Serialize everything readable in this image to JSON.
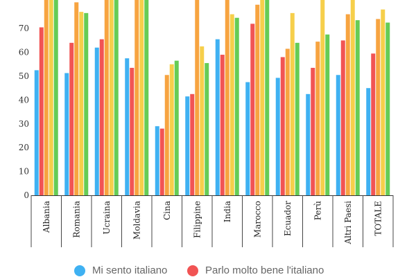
{
  "chart_data": {
    "type": "bar",
    "categories": [
      "Albania",
      "Romania",
      "Ucraina",
      "Moldavia",
      "Cina",
      "Filippine",
      "India",
      "Marocco",
      "Ecuador",
      "Perù",
      "Altri Paesi",
      "TOTALE"
    ],
    "ylim": [
      0,
      80
    ],
    "yticks": [
      0,
      10,
      20,
      30,
      40,
      50,
      60,
      70
    ],
    "grid": false,
    "legend_position": "bottom",
    "series": [
      {
        "name": "Mi sento italiano",
        "color": "#3fb1f2",
        "values": [
          52.5,
          51.3,
          62,
          57.5,
          29,
          41.5,
          65.5,
          47.5,
          49.3,
          42.5,
          50.5,
          45
        ]
      },
      {
        "name": "Parlo molto bene l'italiano",
        "color": "#f15454",
        "values": [
          70.5,
          64,
          65.5,
          53.5,
          28,
          42.5,
          59,
          72,
          58,
          53.5,
          65,
          59.5
        ]
      },
      {
        "values": [
          82,
          81,
          82,
          82,
          50.5,
          82,
          82,
          80,
          61.5,
          64.5,
          76,
          74
        ]
      },
      {
        "values": [
          83,
          77,
          83,
          83,
          55,
          62.5,
          76,
          82,
          76.5,
          82,
          82,
          78
        ]
      },
      {
        "values": [
          84,
          76.5,
          84,
          82,
          56.5,
          55.5,
          74.5,
          83,
          64,
          67.5,
          73.5,
          72.5
        ]
      }
    ],
    "series_colors": [
      "#3fb1f2",
      "#f15454",
      "#f7a440",
      "#f6cf4b",
      "#66cc55"
    ]
  }
}
